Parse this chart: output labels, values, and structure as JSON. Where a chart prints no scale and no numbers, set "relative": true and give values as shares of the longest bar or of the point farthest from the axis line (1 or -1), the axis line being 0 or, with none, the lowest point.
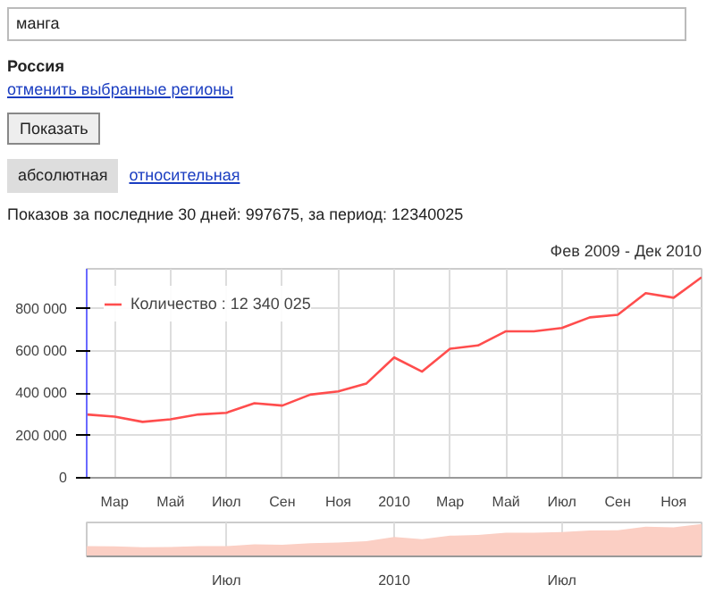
{
  "chart_data": [
    {
      "type": "line",
      "subtitle": "Фев 2009 - Дек 2010",
      "annotations": [
        "манга",
        "Россия",
        "отменить выбранные регионы",
        "Показать",
        "абсолютная",
        "относительная",
        "Показов за последние 30 дней: 997675, за период: 12340025"
      ],
      "categories": [
        null,
        "Мар",
        null,
        "Май",
        null,
        "Июл",
        null,
        "Сен",
        null,
        "Ноя",
        null,
        "2010",
        null,
        "Мар",
        null,
        "Май",
        null,
        "Июл",
        null,
        "Сен",
        null,
        "Ноя",
        null
      ],
      "series": [
        {
          "name": "Количество : 12 340 025",
          "color": "#ff4d4d",
          "values": [
            300000,
            290000,
            265000,
            277000,
            300000,
            308000,
            353000,
            342000,
            394000,
            409000,
            446000,
            570000,
            503000,
            611000,
            627000,
            694000,
            694000,
            710000,
            760000,
            772000,
            875000,
            853000,
            950000
          ]
        }
      ],
      "ylim": [
        0,
        990000
      ],
      "yticks": [
        0,
        {
          "value": 200000,
          "label": "200 000"
        },
        {
          "value": 400000,
          "label": "400 000"
        },
        {
          "value": 600000,
          "label": "600 000"
        },
        {
          "value": 800000,
          "label": "800 000"
        }
      ],
      "grid": true,
      "legend": "top left",
      "marker": "none",
      "line_style": "solid"
    },
    {
      "type": "area",
      "relative": true,
      "categories": [
        null,
        null,
        null,
        null,
        null,
        "Июл",
        null,
        null,
        null,
        null,
        null,
        "2010",
        null,
        null,
        null,
        null,
        null,
        "Июл",
        null,
        null,
        null,
        null,
        null
      ],
      "series": [
        {
          "color": "#fbcfc4",
          "values": [
            0.32,
            0.31,
            0.28,
            0.29,
            0.32,
            0.32,
            0.37,
            0.36,
            0.41,
            0.43,
            0.47,
            0.6,
            0.53,
            0.64,
            0.66,
            0.73,
            0.73,
            0.75,
            0.8,
            0.81,
            0.92,
            0.9,
            1
          ]
        }
      ],
      "tick_labels": "x",
      "grid": "x"
    }
  ]
}
